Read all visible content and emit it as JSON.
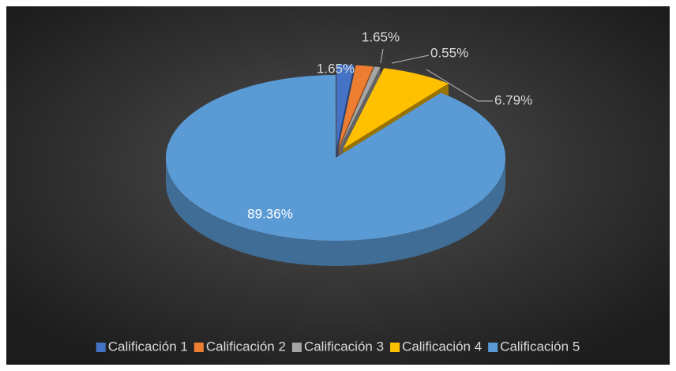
{
  "chart_data": {
    "type": "pie3d",
    "categories": [
      "Calificación 1",
      "Calificación 2",
      "Calificación 3",
      "Calificación 4",
      "Calificación 5"
    ],
    "values": [
      1.65,
      1.65,
      0.55,
      6.79,
      89.36
    ],
    "value_labels": [
      "1.65%",
      "1.65%",
      "0.55%",
      "6.79%",
      "89.36%"
    ],
    "colors": [
      "#4472c4",
      "#ed7d31",
      "#a5a5a5",
      "#ffc000",
      "#5b9bd5"
    ],
    "legend": "bottom"
  }
}
